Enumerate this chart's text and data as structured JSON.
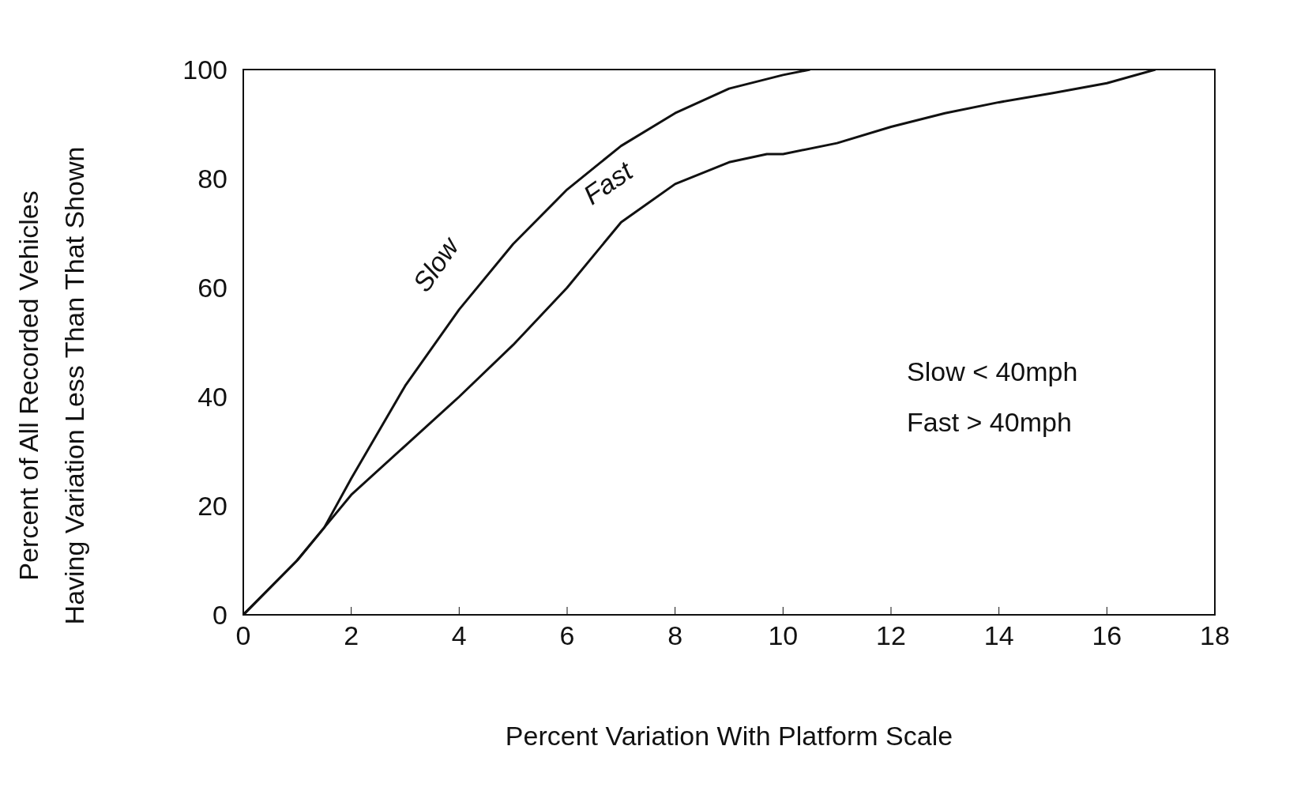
{
  "chart_data": {
    "type": "line",
    "xlabel": "Percent Variation With Platform Scale",
    "ylabel": "Percent of All Recorded Vehicles\nHaving Variation Less Than That Shown",
    "xlim": [
      0,
      18
    ],
    "xticks": [
      0,
      2,
      4,
      6,
      8,
      10,
      12,
      14,
      16,
      18
    ],
    "ylim": [
      0,
      100
    ],
    "yticks": [
      0,
      20,
      40,
      60,
      80,
      100
    ],
    "grid": false,
    "legend": false,
    "marker": "none",
    "line_style": "solid",
    "series": [
      {
        "name": "Slow",
        "color": "#111111",
        "x": [
          0,
          1,
          1.5,
          2,
          3,
          4,
          5,
          6,
          7,
          8,
          9,
          10,
          10.5
        ],
        "values": [
          0,
          10,
          16,
          25,
          42,
          56,
          68,
          78,
          86,
          92,
          96.5,
          99,
          100
        ]
      },
      {
        "name": "Fast",
        "color": "#111111",
        "x": [
          0,
          1,
          1.5,
          2,
          3,
          4,
          5,
          6,
          7,
          8,
          9,
          9.7,
          10,
          11,
          12,
          13,
          14,
          15,
          16,
          16.9
        ],
        "values": [
          0,
          10,
          16,
          22,
          31,
          40,
          49.5,
          60,
          72,
          79,
          83,
          84.5,
          84.5,
          86.5,
          89.5,
          92,
          94,
          95.7,
          97.5,
          100
        ]
      }
    ],
    "annotations": [
      "Slow < 40mph",
      "Fast > 40mph"
    ]
  }
}
